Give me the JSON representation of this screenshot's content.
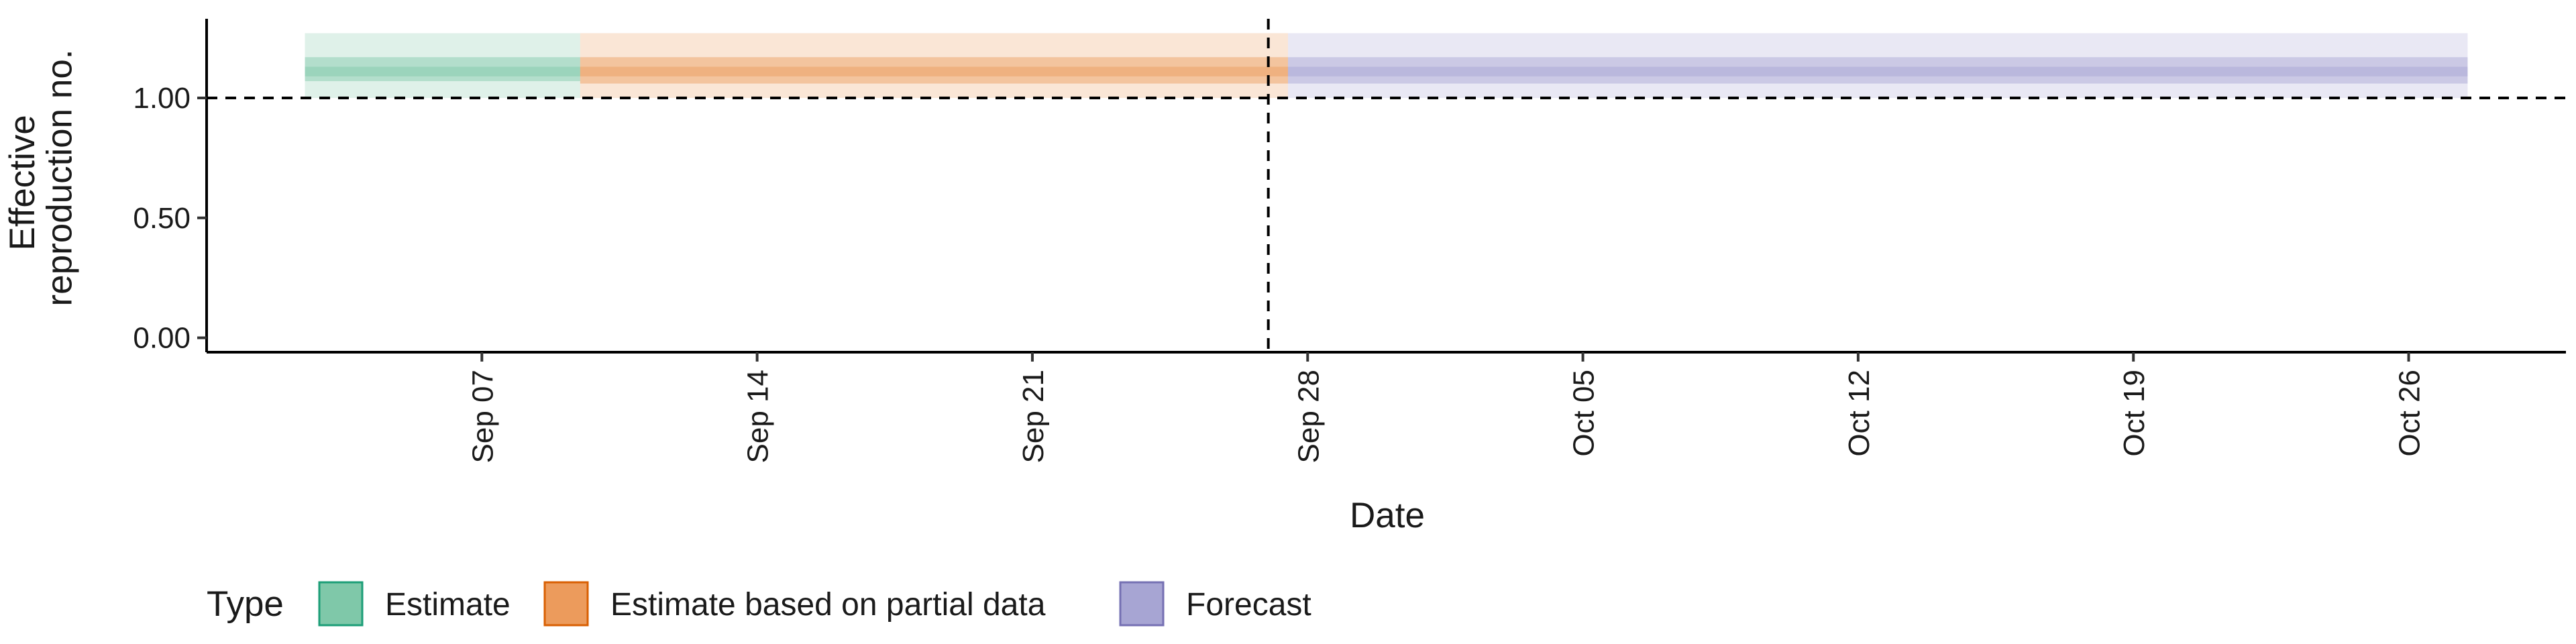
{
  "chart_data": {
    "type": "area",
    "title": "",
    "xlabel": "Date",
    "ylabel": "Effective reproduction no.",
    "ylabel_lines": [
      "Effective",
      "reproduction no."
    ],
    "x_ticks": [
      "2020-09-07",
      "2020-09-14",
      "2020-09-21",
      "2020-09-28",
      "2020-10-05",
      "2020-10-12",
      "2020-10-19",
      "2020-10-26"
    ],
    "x_tick_labels": [
      "Sep 07",
      "Sep 14",
      "Sep 21",
      "Sep 28",
      "Oct 05",
      "Oct 12",
      "Oct 19",
      "Oct 26"
    ],
    "xlim": [
      "2020-08-31",
      "2020-10-30"
    ],
    "y_ticks": [
      0,
      0.5,
      1.0
    ],
    "y_tick_labels": [
      "0.00",
      "0.50",
      "1.00"
    ],
    "ylim": [
      -0.06,
      1.33
    ],
    "reference_lines": {
      "horizontal_y": 1.0,
      "vertical_x": "2020-09-27"
    },
    "grid": false,
    "legend": {
      "title": "Type",
      "position": "bottom-left",
      "entries": [
        "Estimate",
        "Estimate based on partial data",
        "Forecast"
      ]
    },
    "series": [
      {
        "name": "Estimate",
        "color": "#1b9e77",
        "fill": "#7fc8a9",
        "x_start": "2020-09-03",
        "x_end": "2020-09-09",
        "median": 1.11,
        "bands": [
          {
            "lower": 1.0,
            "upper": 1.27,
            "opacity": 0.25
          },
          {
            "lower": 1.07,
            "upper": 1.17,
            "opacity": 0.45
          },
          {
            "lower": 1.09,
            "upper": 1.13,
            "opacity": 0.45
          }
        ]
      },
      {
        "name": "Estimate based on partial data",
        "color": "#d95f02",
        "fill": "#ec9b5c",
        "x_start": "2020-09-10",
        "x_end": "2020-09-27",
        "median": 1.11,
        "bands": [
          {
            "lower": 1.0,
            "upper": 1.27,
            "opacity": 0.25
          },
          {
            "lower": 1.06,
            "upper": 1.17,
            "opacity": 0.45
          },
          {
            "lower": 1.09,
            "upper": 1.13,
            "opacity": 0.45
          }
        ]
      },
      {
        "name": "Forecast",
        "color": "#7570b3",
        "fill": "#a7a5d3",
        "x_start": "2020-09-28",
        "x_end": "2020-10-27",
        "median": 1.11,
        "bands": [
          {
            "lower": 1.0,
            "upper": 1.27,
            "opacity": 0.25
          },
          {
            "lower": 1.06,
            "upper": 1.17,
            "opacity": 0.45
          },
          {
            "lower": 1.09,
            "upper": 1.13,
            "opacity": 0.45
          }
        ]
      }
    ]
  }
}
